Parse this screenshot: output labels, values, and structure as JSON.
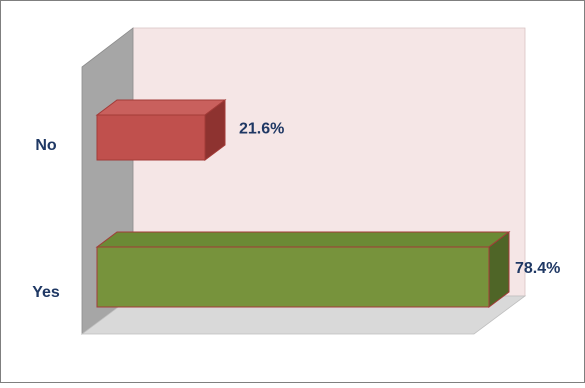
{
  "chart_data": {
    "type": "bar",
    "orientation": "horizontal",
    "style": "3d",
    "categories": [
      "No",
      "Yes"
    ],
    "values": [
      21.6,
      78.4
    ],
    "value_labels": [
      "21.6%",
      "78.4%"
    ],
    "xlim": [
      0,
      100
    ],
    "grid": false,
    "legend": "none",
    "colors": {
      "No": "#c0504d",
      "Yes": "#77933c",
      "label_text": "#1f3864",
      "back_wall": "#f5e6e6",
      "side_wall": "#a6a6a6",
      "floor": "#d9d9d9"
    }
  }
}
